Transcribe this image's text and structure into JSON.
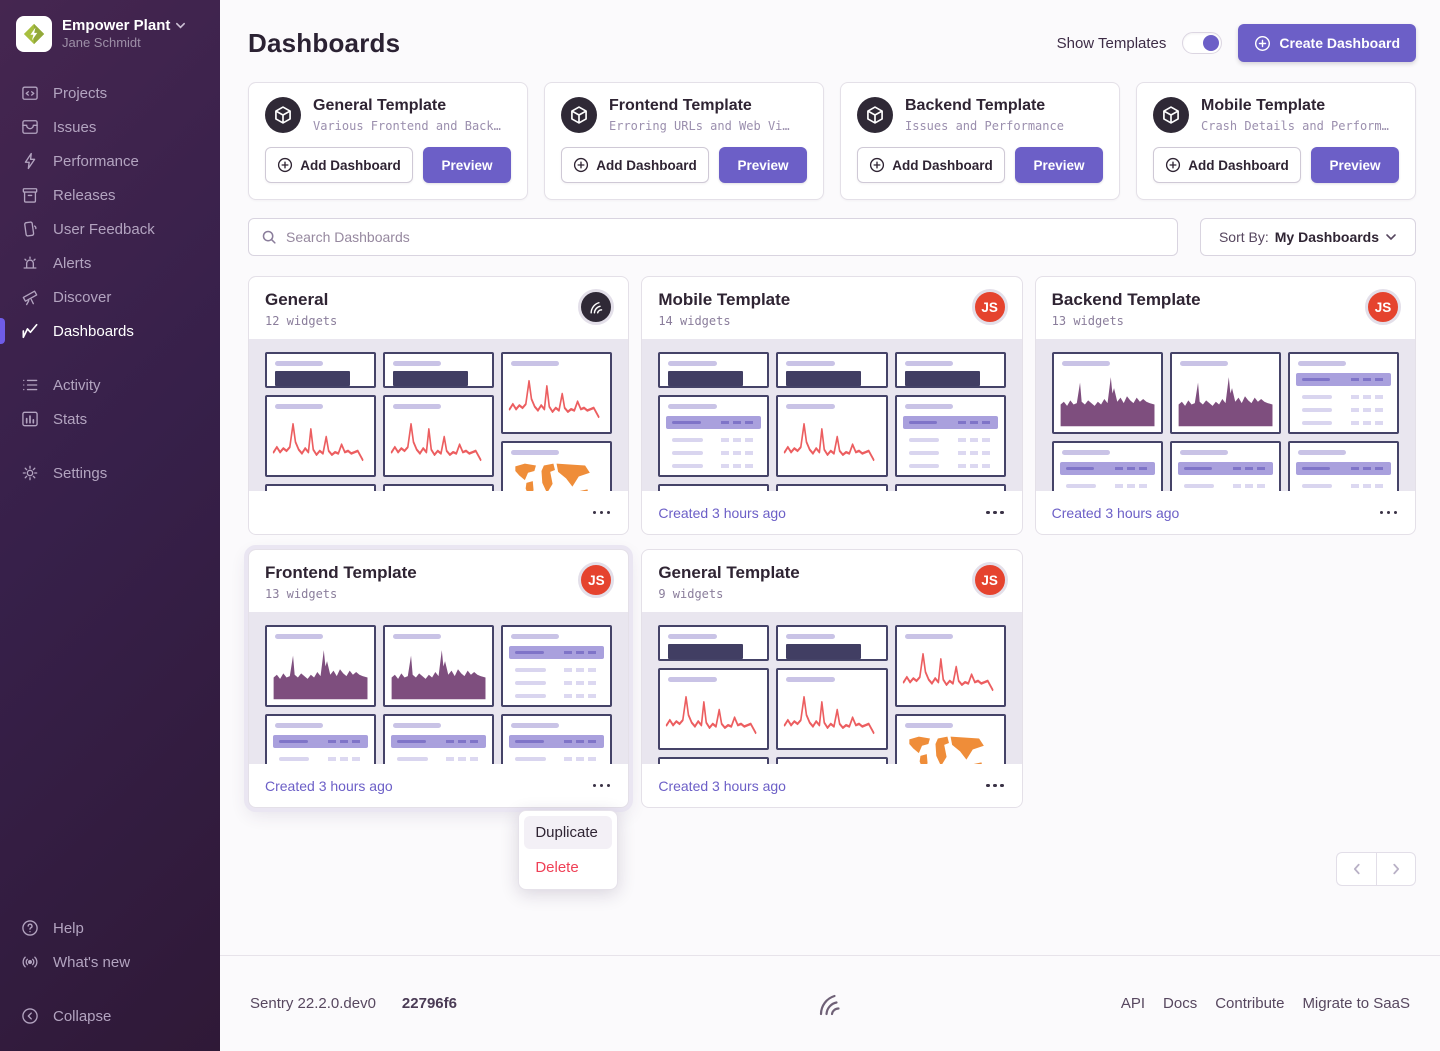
{
  "sidebar": {
    "org_name": "Empower Plant",
    "org_user": "Jane Schmidt",
    "items": [
      {
        "label": "Projects"
      },
      {
        "label": "Issues"
      },
      {
        "label": "Performance"
      },
      {
        "label": "Releases"
      },
      {
        "label": "User Feedback"
      },
      {
        "label": "Alerts"
      },
      {
        "label": "Discover"
      },
      {
        "label": "Dashboards"
      },
      {
        "label": "Activity"
      },
      {
        "label": "Stats"
      },
      {
        "label": "Settings"
      }
    ],
    "help_label": "Help",
    "whats_new_label": "What's new",
    "collapse_label": "Collapse"
  },
  "header": {
    "title": "Dashboards",
    "show_templates_label": "Show Templates",
    "show_templates_on": true,
    "create_button_label": "Create Dashboard"
  },
  "template_buttons": {
    "add_label": "Add Dashboard",
    "preview_label": "Preview"
  },
  "templates": [
    {
      "title": "General Template",
      "subtitle": "Various Frontend and Back…"
    },
    {
      "title": "Frontend Template",
      "subtitle": "Erroring URLs and Web Vi…"
    },
    {
      "title": "Backend Template",
      "subtitle": "Issues and Performance"
    },
    {
      "title": "Mobile Template",
      "subtitle": "Crash Details and Perform…"
    }
  ],
  "search": {
    "placeholder": "Search Dashboards"
  },
  "sort": {
    "label": "Sort By:",
    "value": "My Dashboards"
  },
  "dashboards": [
    {
      "title": "General",
      "widget_count": "12 widgets",
      "avatar": "sentry",
      "created": ""
    },
    {
      "title": "Mobile Template",
      "widget_count": "14 widgets",
      "avatar": "JS",
      "created": "Created 3 hours ago"
    },
    {
      "title": "Backend Template",
      "widget_count": "13 widgets",
      "avatar": "JS",
      "created": "Created 3 hours ago"
    },
    {
      "title": "Frontend Template",
      "widget_count": "13 widgets",
      "avatar": "JS",
      "created": "Created 3 hours ago"
    },
    {
      "title": "General Template",
      "widget_count": "9 widgets",
      "avatar": "JS",
      "created": "Created 3 hours ago"
    }
  ],
  "context_menu": {
    "duplicate_label": "Duplicate",
    "delete_label": "Delete"
  },
  "footer": {
    "version": "Sentry 22.2.0.dev0",
    "build": "22796f6",
    "links": [
      {
        "label": "API"
      },
      {
        "label": "Docs"
      },
      {
        "label": "Contribute"
      },
      {
        "label": "Migrate to SaaS"
      }
    ]
  },
  "colors": {
    "accent": "#6c5fc7",
    "danger": "#ef4056",
    "avatar_red": "#e5432e",
    "chart_line_red": "#ec5e60",
    "chart_area_plum": "#7e4e7e",
    "map_orange": "#ef8d39",
    "sidebar_gradient": [
      "#452650",
      "#2f1937"
    ]
  }
}
